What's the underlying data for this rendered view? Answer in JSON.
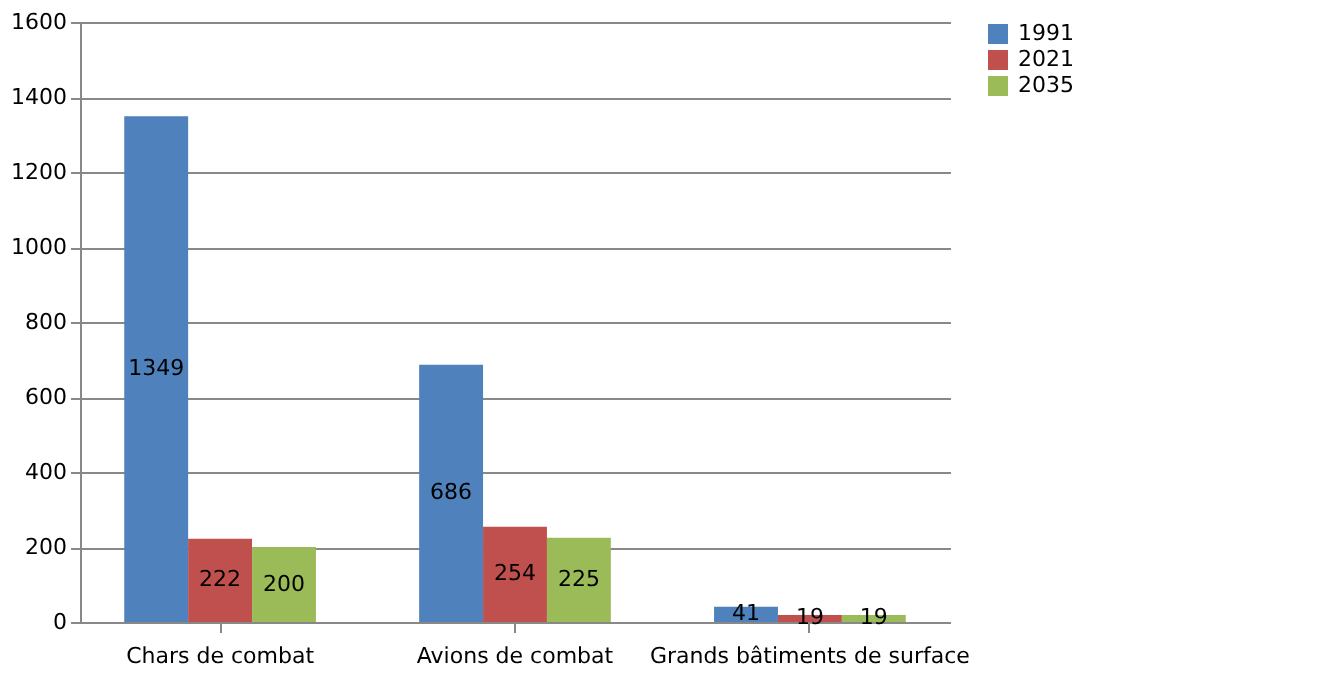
{
  "chart_data": {
    "type": "bar",
    "categories": [
      "Chars de combat",
      "Avions de combat",
      "Grands bâtiments de surface"
    ],
    "series": [
      {
        "name": "1991",
        "color": "#4f81bd",
        "values": [
          1349,
          686,
          41
        ]
      },
      {
        "name": "2021",
        "color": "#c0504d",
        "values": [
          222,
          254,
          19
        ]
      },
      {
        "name": "2035",
        "color": "#9bbb59",
        "values": [
          200,
          225,
          19
        ]
      }
    ],
    "ylim": [
      0,
      1600
    ],
    "yticks": [
      0,
      200,
      400,
      600,
      800,
      1000,
      1200,
      1400,
      1600
    ],
    "grid": "y",
    "legend": "right",
    "data_labels": true
  }
}
